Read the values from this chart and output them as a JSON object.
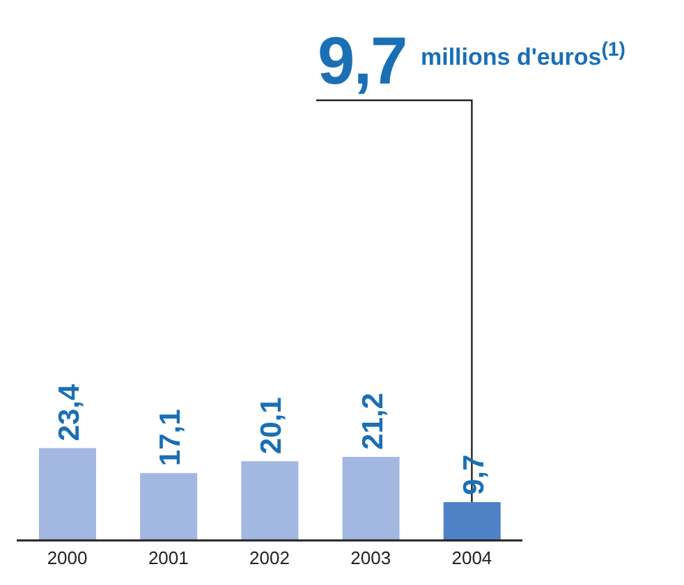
{
  "chart_data": {
    "type": "bar",
    "annotations": [
      {
        "text": "9,7",
        "x": "2004",
        "y": 9.7
      },
      "millions d'euros$^{(1)}$"
    ],
    "categories": [
      "2000",
      "2001",
      "2002",
      "2003",
      "2004"
    ],
    "values": [
      23.4,
      17.1,
      20.1,
      21.2,
      9.7
    ],
    "value_labels": [
      "23,4",
      "17,1",
      "20,1",
      "21,2",
      "9,7"
    ],
    "colors": [
      "#a3b8e0",
      "#a3b8e0",
      "#a3b8e0",
      "#a3b8e0",
      "#4f81c7"
    ],
    "grid": false,
    "legend": false
  }
}
